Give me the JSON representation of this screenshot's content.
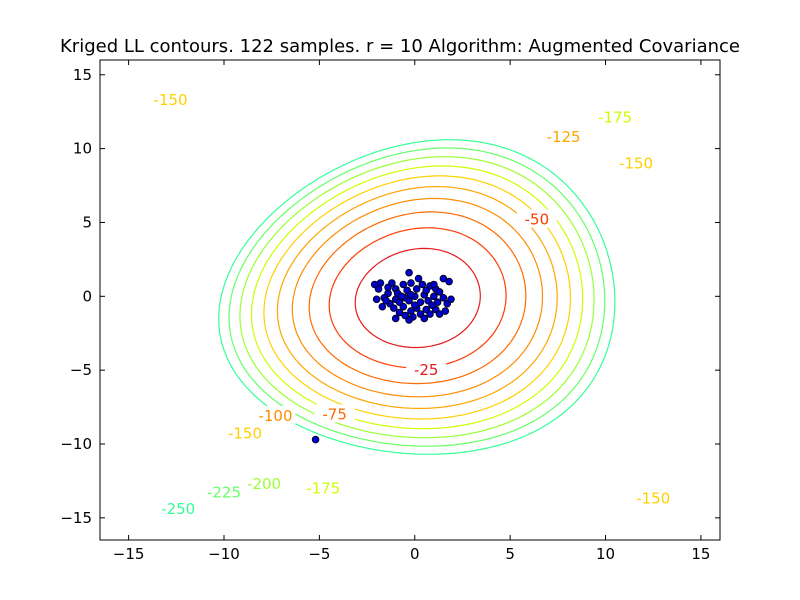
{
  "chart_data": {
    "type": "contour",
    "title": "Kriged LL contours. 122 samples. r = 10 Algorithm: Augmented Covariance",
    "xlabel": "",
    "ylabel": "",
    "xlim": [
      -16.5,
      16
    ],
    "ylim": [
      -16.5,
      16
    ],
    "xticks": [
      -15,
      -10,
      -5,
      0,
      5,
      10,
      15
    ],
    "yticks": [
      -15,
      -10,
      -5,
      0,
      5,
      10,
      15
    ],
    "xtick_labels": [
      "−15",
      "−10",
      "−5",
      "0",
      "5",
      "10",
      "15"
    ],
    "ytick_labels": [
      "−15",
      "−10",
      "−5",
      "0",
      "5",
      "10",
      "15"
    ],
    "grid": false,
    "contour_levels": [
      {
        "level": -25,
        "color": "#e41a1c"
      },
      {
        "level": -50,
        "color": "#ff3b00"
      },
      {
        "level": -75,
        "color": "#ff6a00"
      },
      {
        "level": -100,
        "color": "#ff8c00"
      },
      {
        "level": -125,
        "color": "#ffa500"
      },
      {
        "level": -150,
        "color": "#ffd000"
      },
      {
        "level": -175,
        "color": "#ccff00"
      },
      {
        "level": -200,
        "color": "#99ff33"
      },
      {
        "level": -225,
        "color": "#66ff66"
      },
      {
        "level": -250,
        "color": "#33ff99"
      }
    ],
    "contour_labels": [
      {
        "text": "-25",
        "x": 0.6,
        "y": -5.0,
        "color": "#e41a1c"
      },
      {
        "text": "-50",
        "x": 6.4,
        "y": 5.2,
        "color": "#ff3b00"
      },
      {
        "text": "-75",
        "x": -4.2,
        "y": -8.0,
        "color": "#ff6a00"
      },
      {
        "text": "-100",
        "x": -7.3,
        "y": -8.1,
        "color": "#ff8c00"
      },
      {
        "text": "-125",
        "x": 7.8,
        "y": 10.8,
        "color": "#ffa500"
      },
      {
        "text": "-150",
        "x": -12.8,
        "y": 13.3,
        "color": "#ffd000"
      },
      {
        "text": "-150",
        "x": 11.6,
        "y": 9.0,
        "color": "#ffd000"
      },
      {
        "text": "-150",
        "x": -8.9,
        "y": -9.3,
        "color": "#ffd000"
      },
      {
        "text": "-150",
        "x": 12.5,
        "y": -13.7,
        "color": "#ffd000"
      },
      {
        "text": "-175",
        "x": 10.5,
        "y": 12.1,
        "color": "#ccff00"
      },
      {
        "text": "-175",
        "x": -4.8,
        "y": -13.0,
        "color": "#ccff00"
      },
      {
        "text": "-200",
        "x": -7.9,
        "y": -12.7,
        "color": "#99ff33"
      },
      {
        "text": "-225",
        "x": -10.0,
        "y": -13.3,
        "color": "#66ff66"
      },
      {
        "text": "-250",
        "x": -12.4,
        "y": -14.4,
        "color": "#33ff99"
      }
    ],
    "scatter": {
      "marker_color": "#0000cc",
      "points": [
        [
          -5.2,
          -9.7
        ],
        [
          -0.3,
          1.6
        ],
        [
          0.2,
          1.2
        ],
        [
          1.5,
          1.2
        ],
        [
          1.8,
          1.0
        ],
        [
          -1.2,
          0.9
        ],
        [
          -1.8,
          0.9
        ],
        [
          -1.9,
          0.5
        ],
        [
          -1.4,
          0.2
        ],
        [
          -1.0,
          0.5
        ],
        [
          -0.6,
          0.8
        ],
        [
          -0.2,
          0.9
        ],
        [
          0.4,
          0.8
        ],
        [
          0.8,
          0.7
        ],
        [
          1.1,
          0.5
        ],
        [
          -1.6,
          -0.1
        ],
        [
          -1.0,
          -0.2
        ],
        [
          -0.5,
          -0.1
        ],
        [
          0.0,
          0.0
        ],
        [
          0.5,
          0.1
        ],
        [
          1.0,
          0.0
        ],
        [
          1.5,
          -0.1
        ],
        [
          -2.0,
          -0.2
        ],
        [
          -1.3,
          -0.5
        ],
        [
          -0.8,
          -0.4
        ],
        [
          -0.3,
          -0.3
        ],
        [
          0.3,
          -0.4
        ],
        [
          0.7,
          -0.3
        ],
        [
          1.2,
          -0.4
        ],
        [
          1.7,
          -0.5
        ],
        [
          -1.7,
          -0.7
        ],
        [
          -1.1,
          -0.8
        ],
        [
          -0.6,
          -0.7
        ],
        [
          0.1,
          -0.8
        ],
        [
          0.6,
          -0.9
        ],
        [
          1.1,
          -0.9
        ],
        [
          1.6,
          -1.0
        ],
        [
          -0.8,
          -1.1
        ],
        [
          -0.2,
          -1.0
        ],
        [
          0.3,
          -1.2
        ],
        [
          0.8,
          -1.2
        ],
        [
          1.3,
          -1.2
        ],
        [
          -0.1,
          -1.4
        ],
        [
          -1.0,
          -1.5
        ],
        [
          -0.3,
          -1.6
        ],
        [
          -1.4,
          0.6
        ],
        [
          -0.9,
          0.2
        ],
        [
          -0.4,
          0.4
        ],
        [
          0.1,
          0.5
        ],
        [
          0.6,
          0.4
        ],
        [
          1.3,
          0.3
        ],
        [
          -1.5,
          -0.3
        ],
        [
          -0.7,
          0.0
        ],
        [
          0.9,
          -0.6
        ],
        [
          1.9,
          -0.2
        ],
        [
          -2.1,
          0.8
        ],
        [
          0.0,
          -0.6
        ],
        [
          -0.5,
          -1.3
        ],
        [
          0.5,
          -1.5
        ],
        [
          1.0,
          0.8
        ],
        [
          -0.2,
          0.1
        ]
      ]
    }
  }
}
